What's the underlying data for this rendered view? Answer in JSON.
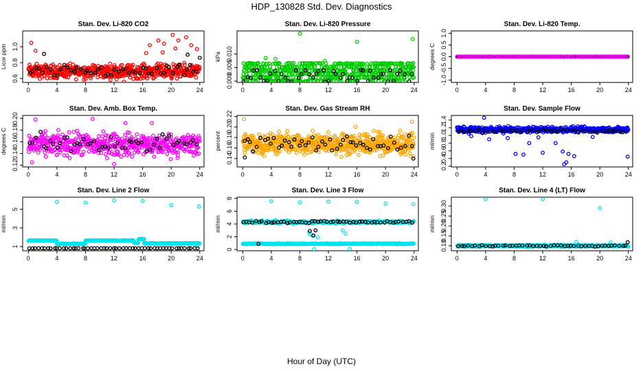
{
  "title": "HDP_130828  Std. Dev. Diagnostics",
  "xlabel": "Hour of Day (UTC)",
  "chart_data": [
    {
      "type": "scatter",
      "title": "Stan. Dev. Li-820 CO2",
      "ylabel": "Licor ppm",
      "xlim": [
        -0.8,
        24.6
      ],
      "ylim": [
        0.55,
        1.2
      ],
      "xticks": [
        "0",
        "4",
        "8",
        "12",
        "16",
        "20",
        "24"
      ],
      "yticks": [
        "0.6",
        "0.8",
        "1.0"
      ],
      "series": [
        {
          "color": "#ff0000",
          "pattern": "band",
          "x_range": [
            0,
            24
          ],
          "n": 600,
          "base": 0.69,
          "spread": 0.07,
          "extra": [
            [
              0.4,
              1.05
            ],
            [
              1.0,
              0.95
            ],
            [
              17.0,
              1.02
            ],
            [
              18.2,
              1.08
            ],
            [
              19.0,
              1.04
            ],
            [
              20.2,
              1.15
            ],
            [
              20.6,
              0.98
            ],
            [
              21.0,
              1.08
            ],
            [
              22.1,
              1.12
            ],
            [
              22.8,
              1.02
            ],
            [
              23.6,
              0.97
            ],
            [
              18.8,
              0.93
            ],
            [
              16.5,
              0.92
            ],
            [
              13.4,
              0.56
            ]
          ]
        },
        {
          "color": "#000000",
          "pattern": "band",
          "x_range": [
            0,
            24
          ],
          "n": 50,
          "base": 0.69,
          "spread": 0.06,
          "extra": [
            [
              2.2,
              0.91
            ],
            [
              22.3,
              0.9
            ],
            [
              24.0,
              0.86
            ]
          ]
        }
      ]
    },
    {
      "type": "scatter",
      "title": "Stan. Dev. Li-820 Pressure",
      "ylabel": "kPa",
      "xlim": [
        -0.8,
        24.6
      ],
      "ylim": [
        -0.0005,
        0.0185
      ],
      "xticks": [
        "0",
        "4",
        "8",
        "12",
        "16",
        "20",
        "24"
      ],
      "yticks": [
        "0.000",
        "0.005",
        "0.010"
      ],
      "series": [
        {
          "color": "#00cc00",
          "pattern": "levels",
          "x_range": [
            0,
            24
          ],
          "n": 650,
          "levels": [
            0.0,
            0.0013,
            0.0026,
            0.0039,
            0.0052,
            0.0065
          ],
          "spread": 0.0003,
          "extra": [
            [
              3.2,
              0.0085
            ],
            [
              8.0,
              0.0175
            ],
            [
              16.0,
              0.0145
            ],
            [
              23.8,
              0.0155
            ],
            [
              4.6,
              0.0082
            ],
            [
              11.5,
              0.0075
            ]
          ]
        },
        {
          "color": "#000000",
          "pattern": "levels",
          "x_range": [
            0,
            24
          ],
          "n": 50,
          "levels": [
            0.0,
            0.0013,
            0.0026,
            0.0039
          ],
          "spread": 0.0003,
          "extra": []
        }
      ]
    },
    {
      "type": "scatter",
      "title": "Stan. Dev. Li-820 Temp.",
      "ylabel": "degrees C",
      "xlim": [
        -0.8,
        24.6
      ],
      "ylim": [
        -1.1,
        1.1
      ],
      "xticks": [
        "0",
        "4",
        "8",
        "12",
        "16",
        "20",
        "24"
      ],
      "yticks": [
        "-1.0",
        "-0.5",
        "0.0",
        "0.5",
        "1.0"
      ],
      "series": [
        {
          "color": "#000000",
          "pattern": "line",
          "x_range": [
            0,
            24
          ],
          "n": 200,
          "base": 0.0,
          "spread": 0.0,
          "extra": []
        },
        {
          "color": "#ff00ff",
          "pattern": "line",
          "x_range": [
            0,
            24
          ],
          "n": 90,
          "base": 0.0,
          "spread": 0.0,
          "extra": []
        }
      ]
    },
    {
      "type": "scatter",
      "title": "Stan. Dev. Amb. Box Temp.",
      "ylabel": "degrees C",
      "xlim": [
        -0.8,
        24.6
      ],
      "ylim": [
        0.117,
        0.205
      ],
      "xticks": [
        "0",
        "4",
        "8",
        "12",
        "16",
        "20",
        "24"
      ],
      "yticks": [
        "0.12",
        "0.14",
        "0.16",
        "0.18",
        "0.20"
      ],
      "series": [
        {
          "color": "#ff00ff",
          "pattern": "band",
          "x_range": [
            0,
            24
          ],
          "n": 560,
          "base": 0.155,
          "spread": 0.016,
          "extra": [
            [
              1.0,
              0.198
            ],
            [
              9.0,
              0.199
            ],
            [
              13.6,
              0.192
            ],
            [
              17.3,
              0.192
            ],
            [
              0.5,
              0.125
            ],
            [
              12.0,
              0.122
            ]
          ]
        },
        {
          "color": "#000000",
          "pattern": "band",
          "x_range": [
            0,
            24
          ],
          "n": 50,
          "base": 0.158,
          "spread": 0.013,
          "extra": []
        }
      ]
    },
    {
      "type": "scatter",
      "title": "Stan. Dev. Gas Stream RH",
      "ylabel": "percent",
      "xlim": [
        -0.8,
        24.6
      ],
      "ylim": [
        0.124,
        0.222
      ],
      "xticks": [
        "0",
        "4",
        "8",
        "12",
        "16",
        "20",
        "24"
      ],
      "yticks": [
        "0.14",
        "0.16",
        "0.18",
        "0.20",
        "0.22"
      ],
      "series": [
        {
          "color": "#ffa500",
          "pattern": "band",
          "x_range": [
            0,
            24
          ],
          "n": 650,
          "base": 0.168,
          "spread": 0.016,
          "extra": [
            [
              0.2,
              0.215
            ],
            [
              23.7,
              0.21
            ],
            [
              15.8,
              0.2
            ]
          ]
        },
        {
          "color": "#000000",
          "pattern": "band",
          "x_range": [
            0,
            24
          ],
          "n": 50,
          "base": 0.168,
          "spread": 0.014,
          "extra": [
            [
              23.9,
              0.14
            ],
            [
              0.3,
              0.142
            ]
          ]
        }
      ]
    },
    {
      "type": "scatter",
      "title": "Stan. Dev. Sample Flow",
      "ylabel": "ml/min",
      "xlim": [
        -0.8,
        24.6
      ],
      "ylim": [
        0.18,
        1.52
      ],
      "xticks": [
        "0",
        "4",
        "8",
        "12",
        "16",
        "20",
        "24"
      ],
      "yticks": [
        "0.2",
        "0.4",
        "0.6",
        "0.8",
        "1.0",
        "1.2",
        "1.4"
      ],
      "series": [
        {
          "color": "#0000ff",
          "pattern": "band",
          "x_range": [
            0,
            24
          ],
          "n": 500,
          "base": 1.15,
          "spread": 0.06,
          "extra": [
            [
              3.8,
              1.46
            ],
            [
              8.2,
              0.52
            ],
            [
              9.3,
              0.5
            ],
            [
              10.1,
              0.8
            ],
            [
              12.0,
              0.55
            ],
            [
              14.8,
              0.58
            ],
            [
              15.0,
              0.25
            ],
            [
              15.3,
              0.3
            ],
            [
              15.6,
              0.52
            ],
            [
              16.4,
              0.46
            ],
            [
              13.8,
              0.8
            ],
            [
              23.9,
              0.45
            ],
            [
              4.5,
              0.9
            ],
            [
              7.1,
              0.93
            ],
            [
              11.4,
              0.95
            ],
            [
              19.0,
              0.96
            ],
            [
              2.0,
              0.98
            ]
          ]
        },
        {
          "color": "#000000",
          "pattern": "band",
          "x_range": [
            0,
            24
          ],
          "n": 50,
          "base": 1.12,
          "spread": 0.04,
          "extra": []
        }
      ]
    },
    {
      "type": "scatter",
      "title": "Stan. Dev. Line 2 Flow",
      "ylabel": "ml/min",
      "xlim": [
        -0.8,
        24.6
      ],
      "ylim": [
        0.55,
        6.3
      ],
      "xticks": [
        "0",
        "4",
        "8",
        "12",
        "16",
        "20",
        "24"
      ],
      "yticks": [
        "1",
        "3",
        "5"
      ],
      "series": [
        {
          "color": "#00e5ee",
          "pattern": "step",
          "x_range": [
            0,
            24
          ],
          "n": 450,
          "steps": [
            [
              0,
              4,
              1.65
            ],
            [
              4,
              8,
              1.3
            ],
            [
              8,
              14.8,
              1.65
            ],
            [
              14.8,
              15.4,
              1.4
            ],
            [
              15.4,
              16.2,
              1.8
            ],
            [
              16.2,
              24,
              1.35
            ]
          ],
          "spread": 0.06,
          "extra": [
            [
              4.0,
              5.8
            ],
            [
              8.0,
              5.7
            ],
            [
              12.0,
              5.95
            ],
            [
              16.0,
              5.9
            ],
            [
              20.0,
              5.45
            ],
            [
              23.9,
              5.3
            ],
            [
              23.6,
              1.05
            ]
          ]
        },
        {
          "color": "#000000",
          "pattern": "line",
          "x_range": [
            0,
            24
          ],
          "n": 55,
          "base": 0.82,
          "spread": 0.01,
          "extra": []
        }
      ]
    },
    {
      "type": "scatter",
      "title": "Stan. Dev. Line 3 Flow",
      "ylabel": "ml/min",
      "xlim": [
        -0.8,
        24.6
      ],
      "ylim": [
        -0.2,
        8.2
      ],
      "xticks": [
        "0",
        "4",
        "8",
        "12",
        "16",
        "20",
        "24"
      ],
      "yticks": [
        "0",
        "2",
        "4",
        "6",
        "8"
      ],
      "series": [
        {
          "color": "#00e5ee",
          "pattern": "band",
          "x_range": [
            0,
            24
          ],
          "n": 420,
          "base": 0.9,
          "spread": 0.06,
          "extra": [
            [
              4.0,
              7.55
            ],
            [
              8.0,
              7.4
            ],
            [
              12.0,
              7.5
            ],
            [
              16.0,
              7.45
            ],
            [
              20.0,
              7.2
            ],
            [
              23.9,
              7.1
            ],
            [
              10.0,
              0.05
            ],
            [
              15.0,
              0.1
            ],
            [
              9.5,
              2.4
            ],
            [
              10.5,
              1.9
            ]
          ]
        },
        {
          "color": "#00e5ee",
          "pattern": "band",
          "x_range": [
            0,
            24
          ],
          "n": 300,
          "base": 4.3,
          "spread": 0.18,
          "extra": [
            [
              9.3,
              2.6
            ],
            [
              9.8,
              2.1
            ],
            [
              14.0,
              3.0
            ],
            [
              14.4,
              2.5
            ]
          ]
        },
        {
          "color": "#000000",
          "pattern": "band",
          "x_range": [
            0,
            24
          ],
          "n": 55,
          "base": 4.3,
          "spread": 0.12,
          "extra": [
            [
              2.2,
              0.9
            ],
            [
              9.4,
              2.9
            ],
            [
              9.9,
              2.2
            ],
            [
              10.2,
              3.0
            ]
          ]
        }
      ]
    },
    {
      "type": "scatter",
      "title": "Stan. Dev. Line 4 (LT) Flow",
      "ylabel": "ml/min",
      "xlim": [
        -0.8,
        24.6
      ],
      "ylim": [
        0.075,
        0.345
      ],
      "xticks": [
        "0",
        "4",
        "8",
        "12",
        "16",
        "20",
        "24"
      ],
      "yticks": [
        "0.10",
        "0.15",
        "0.20",
        "0.25",
        "0.30"
      ],
      "series": [
        {
          "color": "#00e5ee",
          "pattern": "band",
          "x_range": [
            0,
            24
          ],
          "n": 500,
          "base": 0.1,
          "spread": 0.004,
          "extra": [
            [
              4.0,
              0.335
            ],
            [
              12.0,
              0.335
            ],
            [
              20.0,
              0.29
            ],
            [
              16.7,
              0.12
            ],
            [
              21.5,
              0.117
            ]
          ]
        },
        {
          "color": "#000000",
          "pattern": "band",
          "x_range": [
            0,
            24
          ],
          "n": 50,
          "base": 0.1,
          "spread": 0.003,
          "extra": [
            [
              23.9,
              0.118
            ]
          ]
        }
      ]
    }
  ]
}
